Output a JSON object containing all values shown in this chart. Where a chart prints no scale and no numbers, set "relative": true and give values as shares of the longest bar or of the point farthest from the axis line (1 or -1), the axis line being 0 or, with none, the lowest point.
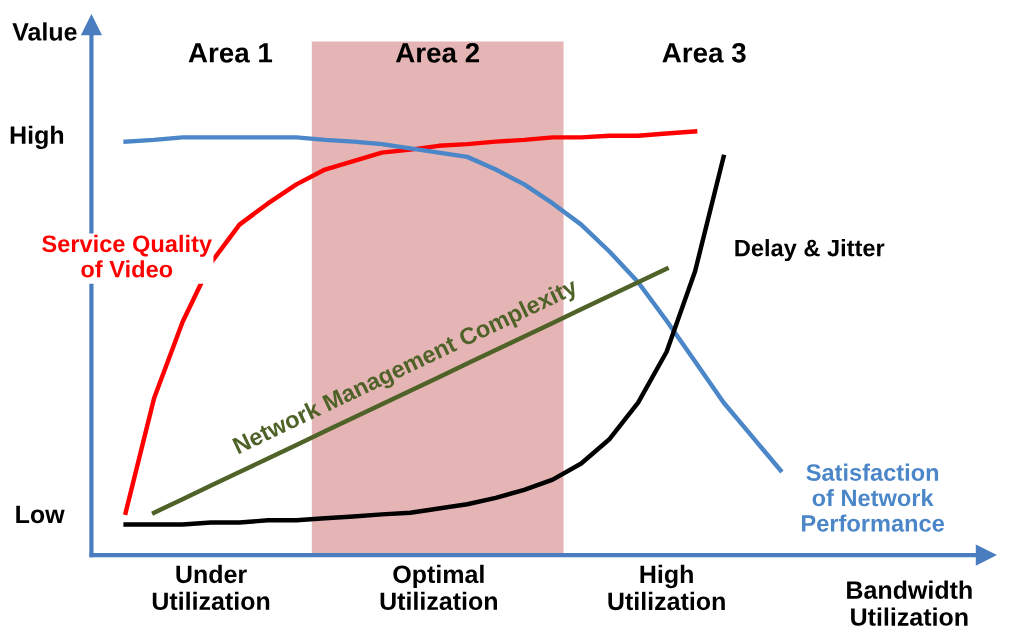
{
  "chart_data": {
    "type": "line",
    "ylabel": "Value",
    "xlabel": "Bandwidth\nUtilization",
    "relative": true,
    "categories": [
      null,
      null,
      null,
      null,
      "Under\nUtilization",
      null,
      null,
      null,
      null,
      null,
      null,
      null,
      "Optimal\nUtilization",
      null,
      null,
      null,
      null,
      null,
      null,
      null,
      "High\nUtilization",
      null,
      null,
      null,
      null,
      null
    ],
    "grid": false,
    "legend": false,
    "marker": "none",
    "line_style": "solid",
    "annotations": [
      "Area 1",
      "Area 3",
      "Low",
      "High",
      "Area 2"
    ],
    "series": [
      {
        "name": "Service Quality\nof Video",
        "color": "#ff0000",
        "values": [
          null,
          0.1,
          0.37,
          0.55,
          0.69,
          0.78,
          0.83,
          0.875,
          0.91,
          0.93,
          0.95,
          0.957,
          0.966,
          0.97,
          0.976,
          0.98,
          0.986,
          0.986,
          0.99,
          0.99,
          0.995,
          1.0,
          null,
          null,
          null,
          null
        ]
      },
      {
        "name": "Satisfaction\nof Network\nPerformance",
        "color": "#4a86c8",
        "values": [
          null,
          0.976,
          0.98,
          0.986,
          0.986,
          0.986,
          0.986,
          0.986,
          0.98,
          0.976,
          0.97,
          0.96,
          0.95,
          0.94,
          0.91,
          0.875,
          0.83,
          0.78,
          0.716,
          0.644,
          0.553,
          0.457,
          0.36,
          0.28,
          0.2,
          null
        ]
      },
      {
        "name": "Delay & Jitter",
        "color": "#000000",
        "values": [
          null,
          0.072,
          0.072,
          0.072,
          0.077,
          0.077,
          0.082,
          0.082,
          0.087,
          0.091,
          0.096,
          0.1,
          0.11,
          0.12,
          0.135,
          0.154,
          0.178,
          0.216,
          0.274,
          0.36,
          0.48,
          0.67,
          0.94,
          null,
          null,
          null
        ]
      },
      {
        "name": "Network Management Complexity",
        "color": "#4f6228",
        "values": [
          null,
          null,
          0.1,
          0.132,
          0.164,
          0.196,
          0.228,
          0.26,
          0.292,
          0.324,
          0.356,
          0.388,
          0.42,
          0.452,
          0.484,
          0.516,
          0.548,
          0.58,
          0.612,
          0.644,
          0.676,
          null,
          null,
          null,
          null,
          null
        ]
      }
    ]
  }
}
